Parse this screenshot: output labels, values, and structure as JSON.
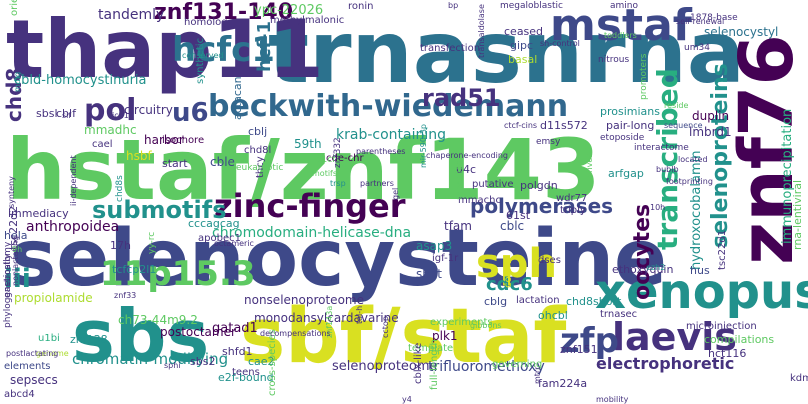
{
  "palette": {
    "dark_purple": "#440154",
    "deep_indigo": "#46327e",
    "indigo": "#3e4989",
    "blue": "#31688e",
    "steel": "#2c728e",
    "teal": "#21918c",
    "green_teal": "#28ae80",
    "green": "#5ec962",
    "lime": "#addc30",
    "yellow": "#d9e021"
  },
  "words": [
    {
      "text": "selenocysteine",
      "color": "#3e4989"
    },
    {
      "text": "hstaf/znf143",
      "color": "#5ec962"
    },
    {
      "text": "trnasnrna",
      "color": "#2c728e"
    },
    {
      "text": "thap11",
      "color": "#46327e"
    },
    {
      "text": "znf76",
      "color": "#440154"
    },
    {
      "text": "sbf/staf",
      "color": "#d9e021"
    },
    {
      "text": "sbs",
      "color": "#21918c"
    },
    {
      "text": "mstaf",
      "color": "#3e4989"
    },
    {
      "text": "xenopus",
      "color": "#21918c"
    },
    {
      "text": "beckwith-wiedemann",
      "color": "#31688e"
    },
    {
      "text": "hcfc1",
      "color": "#2c728e"
    },
    {
      "text": "sph",
      "color": "#d9e021"
    },
    {
      "text": "zinc-finger",
      "color": "#440154"
    },
    {
      "text": "laevis",
      "color": "#46327e"
    },
    {
      "text": "zfp",
      "color": "#3e4989"
    },
    {
      "text": "11p15.3",
      "color": "#5ec962"
    },
    {
      "text": "pol",
      "color": "#46327e"
    },
    {
      "text": "u6",
      "color": "#3e4989"
    },
    {
      "text": "transcribed",
      "color": "#28ae80"
    },
    {
      "text": "selenoproteins",
      "color": "#21918c"
    },
    {
      "text": "submotifs",
      "color": "#21918c"
    },
    {
      "text": "polymerases",
      "color": "#3e4989"
    },
    {
      "text": "oocytes",
      "color": "#440154"
    },
    {
      "text": "rad51",
      "color": "#46327e"
    },
    {
      "text": "znf131-140",
      "color": "#440154"
    },
    {
      "text": "iii",
      "color": "#21918c"
    },
    {
      "text": "cdc6",
      "color": "#21918c"
    },
    {
      "text": "electrophoretic",
      "color": "#46327e"
    },
    {
      "text": "chd8",
      "color": "#46327e"
    },
    {
      "text": "hcf-1",
      "color": "#2c728e"
    },
    {
      "text": "tandemly",
      "color": "#46327e"
    },
    {
      "text": "cbld-homocystinuria",
      "color": "#21918c"
    },
    {
      "text": "chromodomain-helicase-dna",
      "color": "#28ae80"
    },
    {
      "text": "krab-containing",
      "color": "#21918c"
    },
    {
      "text": "chromatin-modifying",
      "color": "#21918c"
    },
    {
      "text": "selenoproteome",
      "color": "#46327e"
    },
    {
      "text": "trifluoromethoxy",
      "color": "#3e4989"
    },
    {
      "text": "nonselenoproteome",
      "color": "#46327e"
    },
    {
      "text": "monodansylcardavarine",
      "color": "#46327e"
    },
    {
      "text": "anthropoidea",
      "color": "#440154"
    },
    {
      "text": "propiolamide",
      "color": "#addc30"
    },
    {
      "text": "hydroxocobalamin",
      "color": "#21918c"
    },
    {
      "text": "immunoprecipitation",
      "color": "#28ae80"
    },
    {
      "text": "selenocystyl",
      "color": "#2c728e"
    },
    {
      "text": "ypc-22026",
      "color": "#5ec962"
    },
    {
      "text": "circuitry",
      "color": "#46327e"
    },
    {
      "text": "mmadhc",
      "color": "#5ec962"
    },
    {
      "text": "harbor",
      "color": "#440154"
    },
    {
      "text": "hsbf",
      "color": "#d9e021"
    },
    {
      "text": "duplin",
      "color": "#440154"
    },
    {
      "text": "lmbrd1",
      "color": "#46327e"
    },
    {
      "text": "d11s572",
      "color": "#46327e"
    },
    {
      "text": "pair-long",
      "color": "#46327e"
    },
    {
      "text": "prosimians",
      "color": "#21918c"
    },
    {
      "text": "ceased",
      "color": "#46327e"
    },
    {
      "text": "gipc",
      "color": "#3e4989"
    },
    {
      "text": "basal",
      "color": "#addc30"
    },
    {
      "text": "transfection",
      "color": "#46327e"
    },
    {
      "text": "methylmalonic",
      "color": "#46327e"
    },
    {
      "text": "homolog",
      "color": "#46327e"
    },
    {
      "text": "synthetic",
      "color": "#21918c"
    },
    {
      "text": "actacan",
      "color": "#31688e"
    },
    {
      "text": "cblj",
      "color": "#3e4989"
    },
    {
      "text": "cble",
      "color": "#3e4989"
    },
    {
      "text": "59th",
      "color": "#21918c"
    },
    {
      "text": "cde-chr",
      "color": "#440154"
    },
    {
      "text": "tfam",
      "color": "#46327e"
    },
    {
      "text": "cblc",
      "color": "#3e4989"
    },
    {
      "text": "asap3",
      "color": "#21918c"
    },
    {
      "text": "shift",
      "color": "#3e4989"
    },
    {
      "text": "igf-1r",
      "color": "#46327e"
    },
    {
      "text": "dses",
      "color": "#46327e"
    },
    {
      "text": "ethoxyquin",
      "color": "#46327e"
    },
    {
      "text": "hus",
      "color": "#3e4989"
    },
    {
      "text": "cblg",
      "color": "#3e4989"
    },
    {
      "text": "lactation",
      "color": "#46327e"
    },
    {
      "text": "chd8short",
      "color": "#21918c"
    },
    {
      "text": "ohcbl",
      "color": "#21918c"
    },
    {
      "text": "trnasec",
      "color": "#46327e"
    },
    {
      "text": "znf151",
      "color": "#46327e"
    },
    {
      "text": "hct116",
      "color": "#46327e"
    },
    {
      "text": "fam224a",
      "color": "#46327e"
    },
    {
      "text": "plk1",
      "color": "#440154"
    },
    {
      "text": "gatad1",
      "color": "#440154"
    },
    {
      "text": "postoctamer",
      "color": "#440154"
    },
    {
      "text": "znf138",
      "color": "#21918c"
    },
    {
      "text": "u1bi",
      "color": "#28ae80"
    },
    {
      "text": "shfd1",
      "color": "#46327e"
    },
    {
      "text": "sbs2",
      "color": "#46327e"
    },
    {
      "text": "cae2",
      "color": "#21918c"
    },
    {
      "text": "e2f-bound",
      "color": "#21918c"
    },
    {
      "text": "sepsecs",
      "color": "#46327e"
    },
    {
      "text": "abcd4",
      "color": "#46327e"
    },
    {
      "text": "elements",
      "color": "#3e4989"
    },
    {
      "text": "ch73-44m9.2",
      "color": "#5ec962"
    },
    {
      "text": "immediacy",
      "color": "#46327e"
    },
    {
      "text": "hela",
      "color": "#3e4989"
    },
    {
      "text": "17h",
      "color": "#46327e"
    },
    {
      "text": "tcfcp2l1",
      "color": "#21918c"
    },
    {
      "text": "cccagcag",
      "color": "#21918c"
    },
    {
      "text": "apobec1",
      "color": "#46327e"
    },
    {
      "text": "start",
      "color": "#46327e"
    },
    {
      "text": "isochore",
      "color": "#440154"
    },
    {
      "text": "cael",
      "color": "#46327e"
    },
    {
      "text": "sbsl",
      "color": "#46327e"
    },
    {
      "text": "cblf",
      "color": "#46327e"
    },
    {
      "text": "u4c",
      "color": "#46327e"
    },
    {
      "text": "putative",
      "color": "#46327e"
    },
    {
      "text": "61st",
      "color": "#46327e"
    },
    {
      "text": "polgdn",
      "color": "#46327e"
    },
    {
      "text": "mmachc",
      "color": "#46327e"
    },
    {
      "text": "arfgap",
      "color": "#21918c"
    },
    {
      "text": "wdr77",
      "color": "#46327e"
    },
    {
      "text": "triply",
      "color": "#46327e"
    },
    {
      "text": "tsc22d2",
      "color": "#46327e"
    },
    {
      "text": "tsc22d1",
      "color": "#46327e"
    },
    {
      "text": "rna-lentiviral",
      "color": "#5ec962"
    },
    {
      "text": "colon",
      "color": "#d9e021"
    },
    {
      "text": "experiments",
      "color": "#5ec962"
    },
    {
      "text": "compilations",
      "color": "#5ec962"
    },
    {
      "text": "microinjection",
      "color": "#46327e"
    },
    {
      "text": "governing",
      "color": "#5ec962"
    },
    {
      "text": "teens",
      "color": "#46327e"
    },
    {
      "text": "template",
      "color": "#5ec962"
    },
    {
      "text": "cross-species",
      "color": "#5ec962"
    },
    {
      "text": "cblx-like",
      "color": "#46327e"
    },
    {
      "text": "full-length",
      "color": "#5ec962"
    },
    {
      "text": "transaldolase",
      "color": "#46327e"
    },
    {
      "text": "sh-control",
      "color": "#46327e"
    },
    {
      "text": "nitrous",
      "color": "#46327e"
    },
    {
      "text": "um34",
      "color": "#46327e"
    },
    {
      "text": "1878-base",
      "color": "#46327e"
    },
    {
      "text": "megaloblastic",
      "color": "#46327e"
    },
    {
      "text": "amino",
      "color": "#46327e"
    },
    {
      "text": "ronin",
      "color": "#46327e"
    },
    {
      "text": "bp",
      "color": "#46327e"
    },
    {
      "text": "orientation",
      "color": "#5ec962"
    },
    {
      "text": "mdig",
      "color": "#21918c"
    },
    {
      "text": "conserved",
      "color": "#21918c"
    },
    {
      "text": "synteny",
      "color": "#46327e"
    },
    {
      "text": "nonlactating",
      "color": "#46327e"
    },
    {
      "text": "ii-dependent",
      "color": "#46327e"
    },
    {
      "text": "chd8s",
      "color": "#21918c"
    },
    {
      "text": "chd8l",
      "color": "#46327e"
    },
    {
      "text": "thcy",
      "color": "#46327e"
    },
    {
      "text": "a1cf",
      "color": "#5ec962"
    },
    {
      "text": "znf332",
      "color": "#46327e"
    },
    {
      "text": "mir-590-3p",
      "color": "#21918c"
    },
    {
      "text": "repeated",
      "color": "#5ec962"
    },
    {
      "text": "drives",
      "color": "#5ec962"
    },
    {
      "text": "gel",
      "color": "#46327e"
    },
    {
      "text": "trsp",
      "color": "#21918c"
    },
    {
      "text": "znf143a",
      "color": "#5ec962"
    },
    {
      "text": "tal-h",
      "color": "#46327e"
    },
    {
      "text": "partners",
      "color": "#46327e"
    },
    {
      "text": "motifs",
      "color": "#5ec962"
    },
    {
      "text": "ctcf-cins",
      "color": "#46327e"
    },
    {
      "text": "emsy",
      "color": "#46327e"
    },
    {
      "text": "etoposide",
      "color": "#46327e"
    },
    {
      "text": "interactome",
      "color": "#46327e"
    },
    {
      "text": "sequence",
      "color": "#3e4989"
    },
    {
      "text": "located",
      "color": "#46327e"
    },
    {
      "text": "bublb",
      "color": "#46327e"
    },
    {
      "text": "footprinting",
      "color": "#46327e"
    },
    {
      "text": "reside",
      "color": "#5ec962"
    },
    {
      "text": "promoters",
      "color": "#5ec962"
    },
    {
      "text": "self-renewal",
      "color": "#46327e"
    },
    {
      "text": "chaperone-encoding",
      "color": "#46327e"
    },
    {
      "text": "parentheses",
      "color": "#46327e"
    },
    {
      "text": "gastrostomy",
      "color": "#46327e"
    },
    {
      "text": "phylogenetically",
      "color": "#46327e"
    },
    {
      "text": "genome",
      "color": "#addc30"
    },
    {
      "text": "postlactating",
      "color": "#46327e"
    },
    {
      "text": "gibbons",
      "color": "#5ec962"
    },
    {
      "text": "cctop",
      "color": "#46327e"
    },
    {
      "text": "sphi",
      "color": "#46327e"
    },
    {
      "text": "decompensations",
      "color": "#46327e"
    },
    {
      "text": "octameric",
      "color": "#46327e"
    },
    {
      "text": "ezh2",
      "color": "#21918c"
    },
    {
      "text": "yy-rc",
      "color": "#5ec962"
    },
    {
      "text": "eukaryotic",
      "color": "#5ec962"
    },
    {
      "text": "mtrr",
      "color": "#46327e"
    },
    {
      "text": "y4",
      "color": "#46327e"
    },
    {
      "text": "kdm5a",
      "color": "#46327e"
    },
    {
      "text": "mobility",
      "color": "#46327e"
    },
    {
      "text": "10h",
      "color": "#46327e"
    },
    {
      "text": "toddlers",
      "color": "#5ec962"
    },
    {
      "text": "sif",
      "color": "#46327e"
    },
    {
      "text": "icn1",
      "color": "#46327e"
    },
    {
      "text": "znf33",
      "color": "#46327e"
    },
    {
      "text": "9h",
      "color": "#5ec962"
    }
  ]
}
